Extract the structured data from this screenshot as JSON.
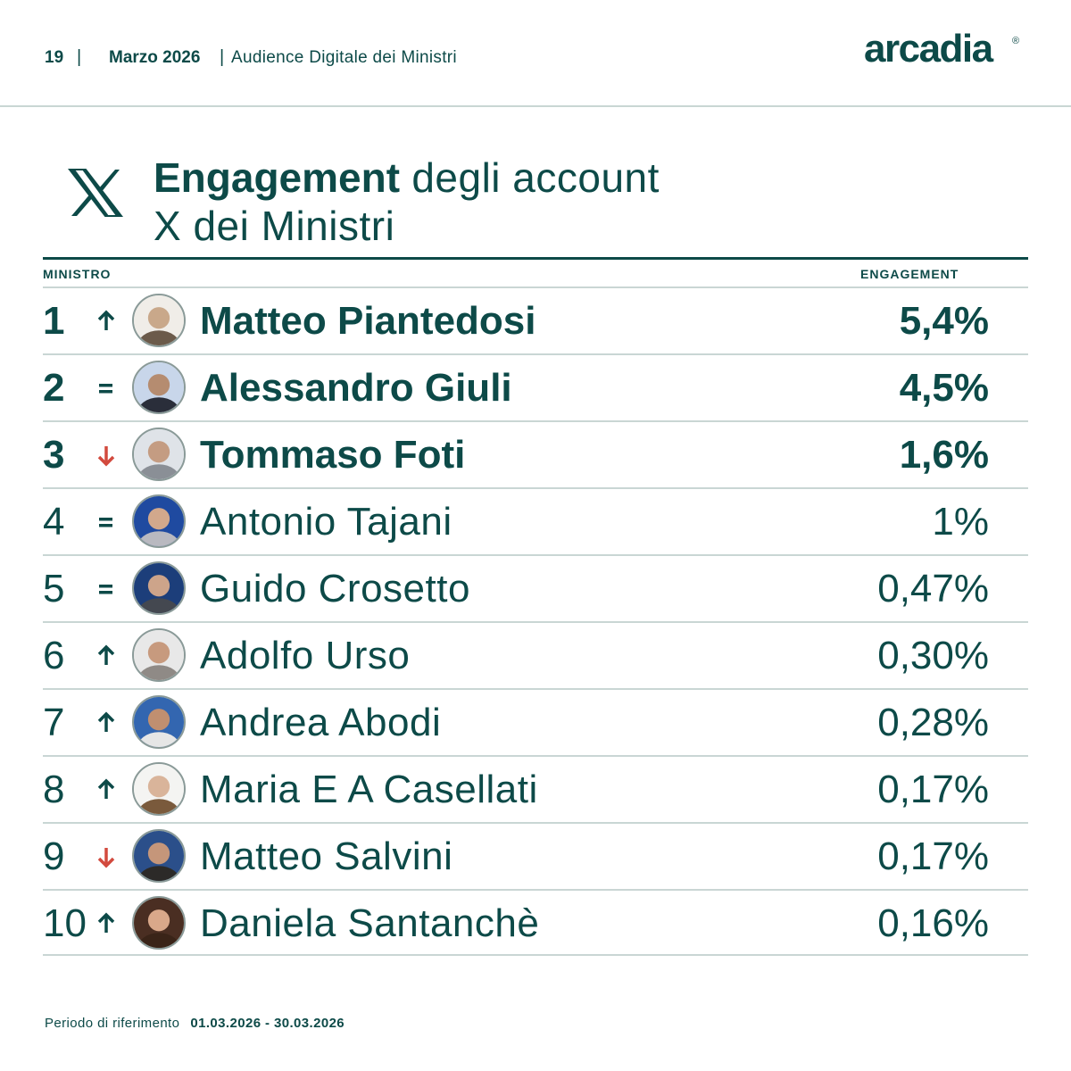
{
  "header": {
    "page_number": "19",
    "separator": "|",
    "month": "Marzo 2026",
    "report_title": "Audience Digitale dei Ministri",
    "logo_text": "arcadia",
    "logo_mark": "®"
  },
  "title": {
    "icon": "x-logo-icon",
    "bold": "Engagement",
    "rest_line1": " degli account",
    "line2": "X dei Ministri"
  },
  "table": {
    "col_left": "MINISTRO",
    "col_right": "ENGAGEMENT",
    "rows": [
      {
        "rank": "1",
        "trend": "up",
        "name": "Matteo Piantedosi",
        "value": "5,4%",
        "avatar_hint": "portrait-white-hair"
      },
      {
        "rank": "2",
        "trend": "equal",
        "name": "Alessandro Giuli",
        "value": "4,5%",
        "avatar_hint": "portrait-dark-suit"
      },
      {
        "rank": "3",
        "trend": "down",
        "name": "Tommaso Foti",
        "value": "1,6%",
        "avatar_hint": "portrait-glasses"
      },
      {
        "rank": "4",
        "trend": "equal",
        "name": "Antonio Tajani",
        "value": "1%",
        "avatar_hint": "portrait-blue-bg"
      },
      {
        "rank": "5",
        "trend": "equal",
        "name": "Guido Crosetto",
        "value": "0,47%",
        "avatar_hint": "portrait-flags"
      },
      {
        "rank": "6",
        "trend": "up",
        "name": "Adolfo Urso",
        "value": "0,30%",
        "avatar_hint": "portrait-grey-hair"
      },
      {
        "rank": "7",
        "trend": "up",
        "name": "Andrea Abodi",
        "value": "0,28%",
        "avatar_hint": "portrait-glasses-blue"
      },
      {
        "rank": "8",
        "trend": "up",
        "name": "Maria E A Casellati",
        "value": "0,17%",
        "avatar_hint": "portrait-woman-light"
      },
      {
        "rank": "9",
        "trend": "down",
        "name": "Matteo Salvini",
        "value": "0,17%",
        "avatar_hint": "portrait-beard"
      },
      {
        "rank": "10",
        "trend": "up",
        "name": "Daniela Santanchè",
        "value": "0,16%",
        "avatar_hint": "portrait-woman-dark"
      }
    ]
  },
  "footer": {
    "label": "Periodo di riferimento",
    "dates": "01.03.2026 - 30.03.2026"
  },
  "colors": {
    "primary": "#0d4a48",
    "divider": "#c9d6d4",
    "trend_up": "#0d4a48",
    "trend_down": "#d24a3e",
    "trend_equal": "#0d4a48"
  }
}
